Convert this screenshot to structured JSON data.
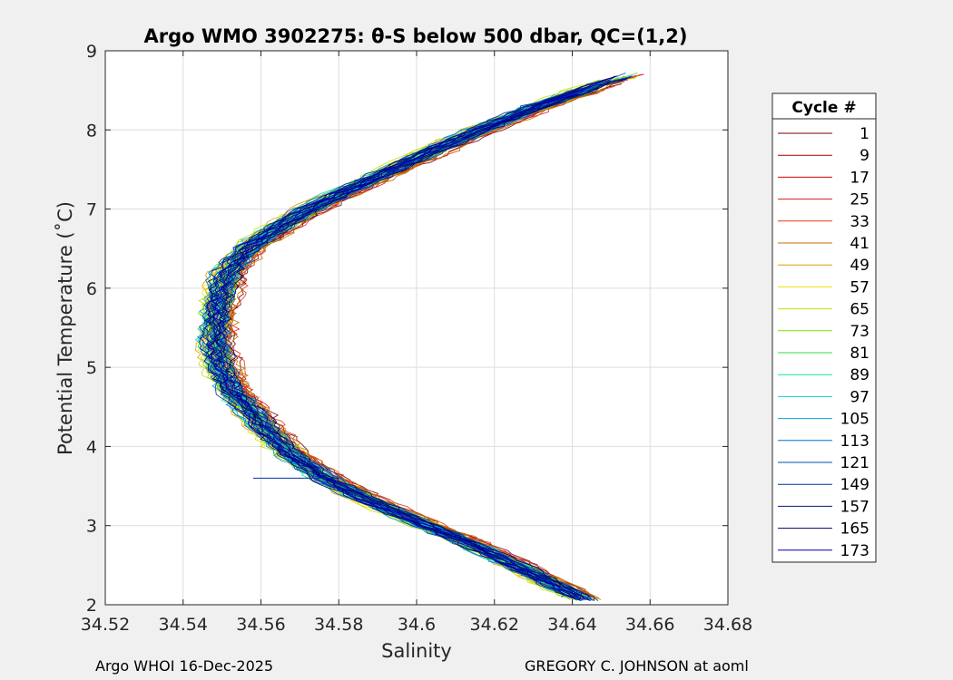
{
  "chart_data": {
    "type": "line",
    "title": "Argo WMO 3902275: θ-S below 500 dbar,  QC=(1,2)",
    "xlabel": "Salinity",
    "ylabel": "Potential Temperature (˚C)",
    "xlim": [
      34.52,
      34.68
    ],
    "ylim": [
      2,
      9
    ],
    "xticks": [
      "34.52",
      "34.54",
      "34.56",
      "34.58",
      "34.6",
      "34.62",
      "34.64",
      "34.66",
      "34.68"
    ],
    "yticks": [
      "2",
      "3",
      "4",
      "5",
      "6",
      "7",
      "8",
      "9"
    ],
    "grid": true,
    "legend_position": "right",
    "legend_title": "Cycle #",
    "series": [
      {
        "name": "1",
        "color": "#7a0000"
      },
      {
        "name": "9",
        "color": "#a50000"
      },
      {
        "name": "17",
        "color": "#d40000"
      },
      {
        "name": "25",
        "color": "#e31818"
      },
      {
        "name": "33",
        "color": "#e03a1a"
      },
      {
        "name": "41",
        "color": "#c07000"
      },
      {
        "name": "49",
        "color": "#d9a000"
      },
      {
        "name": "57",
        "color": "#eee000"
      },
      {
        "name": "65",
        "color": "#c4e000"
      },
      {
        "name": "73",
        "color": "#7ee000"
      },
      {
        "name": "81",
        "color": "#2ee040"
      },
      {
        "name": "89",
        "color": "#10e0a0"
      },
      {
        "name": "97",
        "color": "#10d0d8"
      },
      {
        "name": "105",
        "color": "#0aa0e0"
      },
      {
        "name": "113",
        "color": "#0070c8"
      },
      {
        "name": "121",
        "color": "#0050b0"
      },
      {
        "name": "149",
        "color": "#0030a0"
      },
      {
        "name": "157",
        "color": "#001a80"
      },
      {
        "name": "165",
        "color": "#000060"
      },
      {
        "name": "173",
        "color": "#0000b0"
      }
    ],
    "curve": {
      "temperature": [
        2.0,
        2.2,
        2.5,
        2.8,
        3.0,
        3.3,
        3.6,
        3.9,
        4.2,
        4.5,
        4.7,
        5.0,
        5.3,
        5.6,
        5.9,
        6.2,
        6.5,
        6.8,
        7.1,
        7.4,
        7.7,
        8.0,
        8.3,
        8.6,
        8.8
      ],
      "salinity": [
        34.645,
        34.637,
        34.625,
        34.612,
        34.602,
        34.588,
        34.576,
        34.567,
        34.561,
        34.556,
        34.552,
        34.549,
        34.548,
        34.548,
        34.549,
        34.551,
        34.556,
        34.565,
        34.576,
        34.589,
        34.602,
        34.616,
        34.631,
        34.648,
        34.662
      ]
    },
    "annotation_line": {
      "temperature": 3.6,
      "salinity_start": 34.558,
      "salinity_end": 34.58,
      "color": "#0030a0"
    }
  },
  "footer": {
    "left": "Argo WHOI 16-Dec-2025",
    "right": "GREGORY C. JOHNSON at aoml"
  }
}
